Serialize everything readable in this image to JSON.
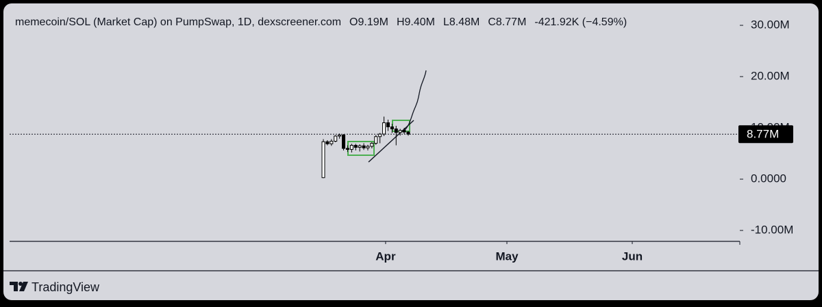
{
  "chart_data": {
    "type": "candlestick",
    "title": "memecoin/SOL (Market Cap) on PumpSwap, 1D, dexscreener.com",
    "legend_items": [
      "O9.19M",
      "H9.40M",
      "L8.48M",
      "C8.77M",
      "-421.92K (−4.59%)"
    ],
    "categories": [
      null,
      null,
      null,
      null,
      null,
      null,
      null,
      null,
      null,
      null,
      null,
      null,
      null,
      null,
      null,
      null,
      null,
      null,
      null,
      null,
      null,
      null
    ],
    "open": [
      300000,
      7300000,
      6900000,
      7400000,
      8400000,
      8600000,
      6000000,
      5800000,
      6600000,
      6200000,
      6500000,
      6100000,
      6400000,
      7000000,
      8300000,
      8800000,
      11000000,
      10200000,
      9800000,
      9100000,
      9500000,
      9190000
    ],
    "high": [
      7800000,
      7600000,
      7800000,
      8600000,
      8900000,
      8800000,
      6600000,
      6900000,
      6900000,
      6800000,
      7000000,
      6700000,
      7200000,
      8600000,
      9000000,
      12200000,
      11600000,
      10800000,
      10400000,
      9800000,
      10000000,
      9400000
    ],
    "low": [
      200000,
      6600000,
      6500000,
      7200000,
      7900000,
      5600000,
      5300000,
      5200000,
      5600000,
      5400000,
      5700000,
      5600000,
      6000000,
      6700000,
      7000000,
      8400000,
      9400000,
      9000000,
      6600000,
      8500000,
      8800000,
      8480000
    ],
    "close": [
      7300000,
      6900000,
      7400000,
      8400000,
      8600000,
      6000000,
      5800000,
      6600000,
      6200000,
      6500000,
      6100000,
      6400000,
      7000000,
      8300000,
      8800000,
      11000000,
      10200000,
      9800000,
      9100000,
      9500000,
      9190000,
      8770000
    ],
    "last_price_label": "8.77M",
    "up_color": "#ffffff",
    "down_color": "#000000",
    "xlim": [
      -77.6,
      103
    ],
    "xticks": [
      {
        "value": 15.4,
        "label": "Apr"
      },
      {
        "value": 45.4,
        "label": "May"
      },
      {
        "value": 76.4,
        "label": "Jun"
      }
    ],
    "ylim": [
      -12130000,
      33070000
    ],
    "yticks": [
      {
        "value": 30000000,
        "label": "30.00M"
      },
      {
        "value": 20000000,
        "label": "20.00M"
      },
      {
        "value": 10000000,
        "label": "10.00M"
      },
      {
        "value": 0,
        "label": "0.0000"
      },
      {
        "value": -10000000,
        "label": "-10.00M"
      }
    ]
  },
  "footer": {
    "brand": "TradingView"
  }
}
